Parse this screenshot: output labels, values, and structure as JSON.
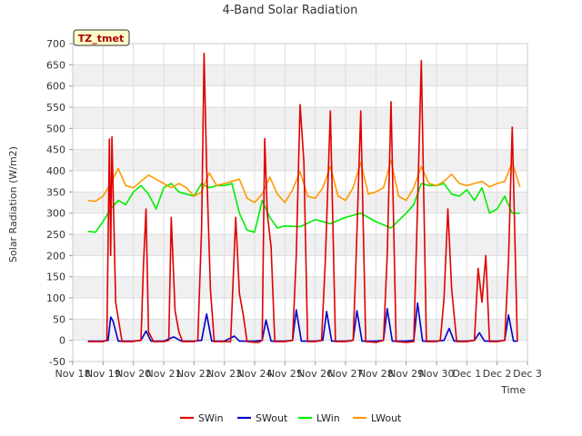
{
  "chart_data": {
    "type": "line",
    "title": "4-Band Solar Radiation",
    "xlabel": "Time",
    "ylabel": "Solar Radiation (W/m2)",
    "site_tag": "TZ_tmet",
    "ylim": [
      -50,
      700
    ],
    "yticks": [
      -50,
      0,
      50,
      100,
      150,
      200,
      250,
      300,
      350,
      400,
      450,
      500,
      550,
      600,
      650,
      700
    ],
    "xlim": [
      "Nov 18",
      "Dec 3"
    ],
    "xticks": [
      "Nov 18",
      "Nov 19",
      "Nov 20",
      "Nov 21",
      "Nov 22",
      "Nov 23",
      "Nov 24",
      "Nov 25",
      "Nov 26",
      "Nov 27",
      "Nov 28",
      "Nov 29",
      "Nov 30",
      "Dec 1",
      "Dec 2",
      "Dec 3"
    ],
    "grid": true,
    "legend": "bottom-center",
    "series": [
      {
        "name": "SWin",
        "color": "#e00000",
        "x": [
          "Nov 18 12:00",
          "Nov 18 18:00",
          "Nov 19 00:00",
          "Nov 19 03:00",
          "Nov 19 05:00",
          "Nov 19 06:00",
          "Nov 19 07:00",
          "Nov 19 10:00",
          "Nov 19 15:00",
          "Nov 19 18:00",
          "Nov 19 20:00",
          "Nov 19 23:00",
          "Nov 20 06:00",
          "Nov 20 08:00",
          "Nov 20 10:00",
          "Nov 20 12:00",
          "Nov 20 16:00",
          "Nov 21 00:00",
          "Nov 21 04:00",
          "Nov 21 06:00",
          "Nov 21 09:00",
          "Nov 21 12:00",
          "Nov 21 15:00",
          "Nov 21 18:00",
          "Nov 22 00:00",
          "Nov 22 03:00",
          "Nov 22 06:00",
          "Nov 22 08:00",
          "Nov 22 10:00",
          "Nov 22 13:00",
          "Nov 22 16:00",
          "Nov 23 00:00",
          "Nov 23 05:00",
          "Nov 23 09:00",
          "Nov 23 12:00",
          "Nov 23 15:00",
          "Nov 23 18:00",
          "Nov 24 00:00",
          "Nov 24 03:00",
          "Nov 24 06:00",
          "Nov 24 08:00",
          "Nov 24 10:00",
          "Nov 24 13:00",
          "Nov 24 16:00",
          "Nov 25 00:00",
          "Nov 25 06:00",
          "Nov 25 09:00",
          "Nov 25 12:00",
          "Nov 25 15:00",
          "Nov 25 18:00",
          "Nov 26 00:00",
          "Nov 26 05:00",
          "Nov 26 08:00",
          "Nov 26 12:00",
          "Nov 26 16:00",
          "Nov 27 00:00",
          "Nov 27 06:00",
          "Nov 27 08:00",
          "Nov 27 12:00",
          "Nov 27 16:00",
          "Nov 28 00:00",
          "Nov 28 06:00",
          "Nov 28 09:00",
          "Nov 28 12:00",
          "Nov 28 16:00",
          "Nov 29 00:00",
          "Nov 29 06:00",
          "Nov 29 09:00",
          "Nov 29 12:00",
          "Nov 29 16:00",
          "Nov 30 00:00",
          "Nov 30 03:00",
          "Nov 30 06:00",
          "Nov 30 09:00",
          "Nov 30 12:00",
          "Nov 30 16:00",
          "Dec 1 00:00",
          "Dec 1 06:00",
          "Dec 1 09:00",
          "Dec 1 12:00",
          "Dec 1 15:00",
          "Dec 1 18:00",
          "Dec 2 00:00",
          "Dec 2 06:00",
          "Dec 2 09:00",
          "Dec 2 12:00",
          "Dec 2 16:00"
        ],
        "y": [
          -3,
          -3,
          -3,
          0,
          475,
          200,
          480,
          90,
          -3,
          -3,
          -3,
          -3,
          0,
          180,
          310,
          20,
          -3,
          -3,
          0,
          290,
          70,
          20,
          -3,
          -3,
          -3,
          0,
          265,
          677,
          410,
          120,
          -3,
          -3,
          -3,
          290,
          110,
          60,
          -3,
          -5,
          -5,
          0,
          476,
          300,
          220,
          -3,
          -3,
          0,
          200,
          556,
          420,
          -3,
          -3,
          0,
          190,
          541,
          -3,
          -3,
          0,
          160,
          541,
          -3,
          -5,
          0,
          200,
          563,
          -3,
          -5,
          -3,
          320,
          660,
          -3,
          -3,
          0,
          100,
          310,
          120,
          -3,
          -3,
          0,
          170,
          90,
          200,
          -3,
          -3,
          0,
          190,
          503,
          -3
        ]
      },
      {
        "name": "SWout",
        "color": "#0000cc",
        "x": [
          "Nov 18 12:00",
          "Nov 19 00:00",
          "Nov 19 04:00",
          "Nov 19 06:00",
          "Nov 19 08:00",
          "Nov 19 12:00",
          "Nov 20 00:00",
          "Nov 20 06:00",
          "Nov 20 10:00",
          "Nov 20 14:00",
          "Nov 21 00:00",
          "Nov 21 08:00",
          "Nov 21 14:00",
          "Nov 22 00:00",
          "Nov 22 06:00",
          "Nov 22 10:00",
          "Nov 22 14:00",
          "Nov 23 00:00",
          "Nov 23 08:00",
          "Nov 23 12:00",
          "Nov 24 00:00",
          "Nov 24 06:00",
          "Nov 24 09:00",
          "Nov 24 13:00",
          "Nov 25 00:00",
          "Nov 25 06:00",
          "Nov 25 09:00",
          "Nov 25 13:00",
          "Nov 26 00:00",
          "Nov 26 06:00",
          "Nov 26 09:00",
          "Nov 26 13:00",
          "Nov 27 00:00",
          "Nov 27 06:00",
          "Nov 27 09:00",
          "Nov 27 13:00",
          "Nov 28 00:00",
          "Nov 28 06:00",
          "Nov 28 09:00",
          "Nov 28 13:00",
          "Nov 29 00:00",
          "Nov 29 06:00",
          "Nov 29 09:00",
          "Nov 29 13:00",
          "Nov 30 00:00",
          "Nov 30 06:00",
          "Nov 30 10:00",
          "Nov 30 14:00",
          "Dec 1 00:00",
          "Dec 1 06:00",
          "Dec 1 10:00",
          "Dec 1 14:00",
          "Dec 2 00:00",
          "Dec 2 06:00",
          "Dec 2 09:00",
          "Dec 2 13:00",
          "Dec 2 16:00"
        ],
        "y": [
          -2,
          -2,
          0,
          55,
          45,
          -2,
          -2,
          0,
          22,
          -2,
          -2,
          8,
          -2,
          -2,
          0,
          62,
          -2,
          -2,
          10,
          -2,
          -2,
          0,
          48,
          -2,
          -2,
          0,
          72,
          -2,
          -2,
          0,
          68,
          -2,
          -2,
          0,
          70,
          -2,
          -2,
          0,
          75,
          -2,
          -2,
          0,
          88,
          -2,
          -2,
          0,
          28,
          -2,
          -2,
          0,
          18,
          -2,
          -2,
          0,
          60,
          -2,
          -2
        ]
      },
      {
        "name": "LWin",
        "color": "#00ee00",
        "x": [
          "Nov 18 12:00",
          "Nov 18 18:00",
          "Nov 19 00:00",
          "Nov 19 06:00",
          "Nov 19 12:00",
          "Nov 19 18:00",
          "Nov 20 00:00",
          "Nov 20 06:00",
          "Nov 20 12:00",
          "Nov 20 18:00",
          "Nov 21 00:00",
          "Nov 21 06:00",
          "Nov 21 12:00",
          "Nov 21 18:00",
          "Nov 22 00:00",
          "Nov 22 06:00",
          "Nov 22 12:00",
          "Nov 22 18:00",
          "Nov 23 00:00",
          "Nov 23 06:00",
          "Nov 23 12:00",
          "Nov 23 18:00",
          "Nov 24 00:00",
          "Nov 24 06:00",
          "Nov 24 12:00",
          "Nov 24 18:00",
          "Nov 25 00:00",
          "Nov 25 12:00",
          "Nov 26 00:00",
          "Nov 26 12:00",
          "Nov 27 00:00",
          "Nov 27 12:00",
          "Nov 28 00:00",
          "Nov 28 12:00",
          "Nov 29 00:00",
          "Nov 29 06:00",
          "Nov 29 12:00",
          "Nov 29 18:00",
          "Nov 30 00:00",
          "Nov 30 06:00",
          "Nov 30 12:00",
          "Nov 30 18:00",
          "Dec 1 00:00",
          "Dec 1 06:00",
          "Dec 1 12:00",
          "Dec 1 18:00",
          "Dec 2 00:00",
          "Dec 2 06:00",
          "Dec 2 12:00",
          "Dec 2 18:00"
        ],
        "y": [
          257,
          255,
          280,
          310,
          330,
          320,
          350,
          365,
          345,
          310,
          360,
          370,
          350,
          345,
          340,
          370,
          360,
          365,
          365,
          370,
          300,
          260,
          255,
          330,
          290,
          265,
          270,
          268,
          285,
          275,
          290,
          300,
          280,
          265,
          300,
          320,
          370,
          365,
          365,
          370,
          345,
          340,
          355,
          330,
          360,
          300,
          310,
          340,
          300,
          300
        ]
      },
      {
        "name": "LWout",
        "color": "#ff9900",
        "x": [
          "Nov 18 12:00",
          "Nov 18 18:00",
          "Nov 19 00:00",
          "Nov 19 06:00",
          "Nov 19 12:00",
          "Nov 19 18:00",
          "Nov 20 00:00",
          "Nov 20 06:00",
          "Nov 20 12:00",
          "Nov 20 18:00",
          "Nov 21 00:00",
          "Nov 21 06:00",
          "Nov 21 12:00",
          "Nov 21 18:00",
          "Nov 22 00:00",
          "Nov 22 06:00",
          "Nov 22 12:00",
          "Nov 22 18:00",
          "Nov 23 00:00",
          "Nov 23 06:00",
          "Nov 23 12:00",
          "Nov 23 18:00",
          "Nov 24 00:00",
          "Nov 24 06:00",
          "Nov 24 12:00",
          "Nov 24 18:00",
          "Nov 25 00:00",
          "Nov 25 06:00",
          "Nov 25 12:00",
          "Nov 25 18:00",
          "Nov 26 00:00",
          "Nov 26 06:00",
          "Nov 26 12:00",
          "Nov 26 18:00",
          "Nov 27 00:00",
          "Nov 27 06:00",
          "Nov 27 12:00",
          "Nov 27 18:00",
          "Nov 28 00:00",
          "Nov 28 06:00",
          "Nov 28 12:00",
          "Nov 28 18:00",
          "Nov 29 00:00",
          "Nov 29 06:00",
          "Nov 29 12:00",
          "Nov 29 18:00",
          "Nov 30 00:00",
          "Nov 30 06:00",
          "Nov 30 12:00",
          "Nov 30 18:00",
          "Dec 1 00:00",
          "Dec 1 06:00",
          "Dec 1 12:00",
          "Dec 1 18:00",
          "Dec 2 00:00",
          "Dec 2 06:00",
          "Dec 2 12:00",
          "Dec 2 18:00"
        ],
        "y": [
          330,
          328,
          340,
          370,
          405,
          365,
          360,
          375,
          390,
          380,
          370,
          360,
          370,
          360,
          340,
          350,
          395,
          365,
          370,
          375,
          380,
          335,
          325,
          345,
          385,
          345,
          325,
          355,
          398,
          340,
          335,
          360,
          410,
          340,
          330,
          360,
          420,
          345,
          350,
          360,
          425,
          340,
          330,
          360,
          410,
          370,
          365,
          375,
          392,
          370,
          365,
          370,
          375,
          362,
          370,
          375,
          420,
          362
        ]
      }
    ]
  }
}
